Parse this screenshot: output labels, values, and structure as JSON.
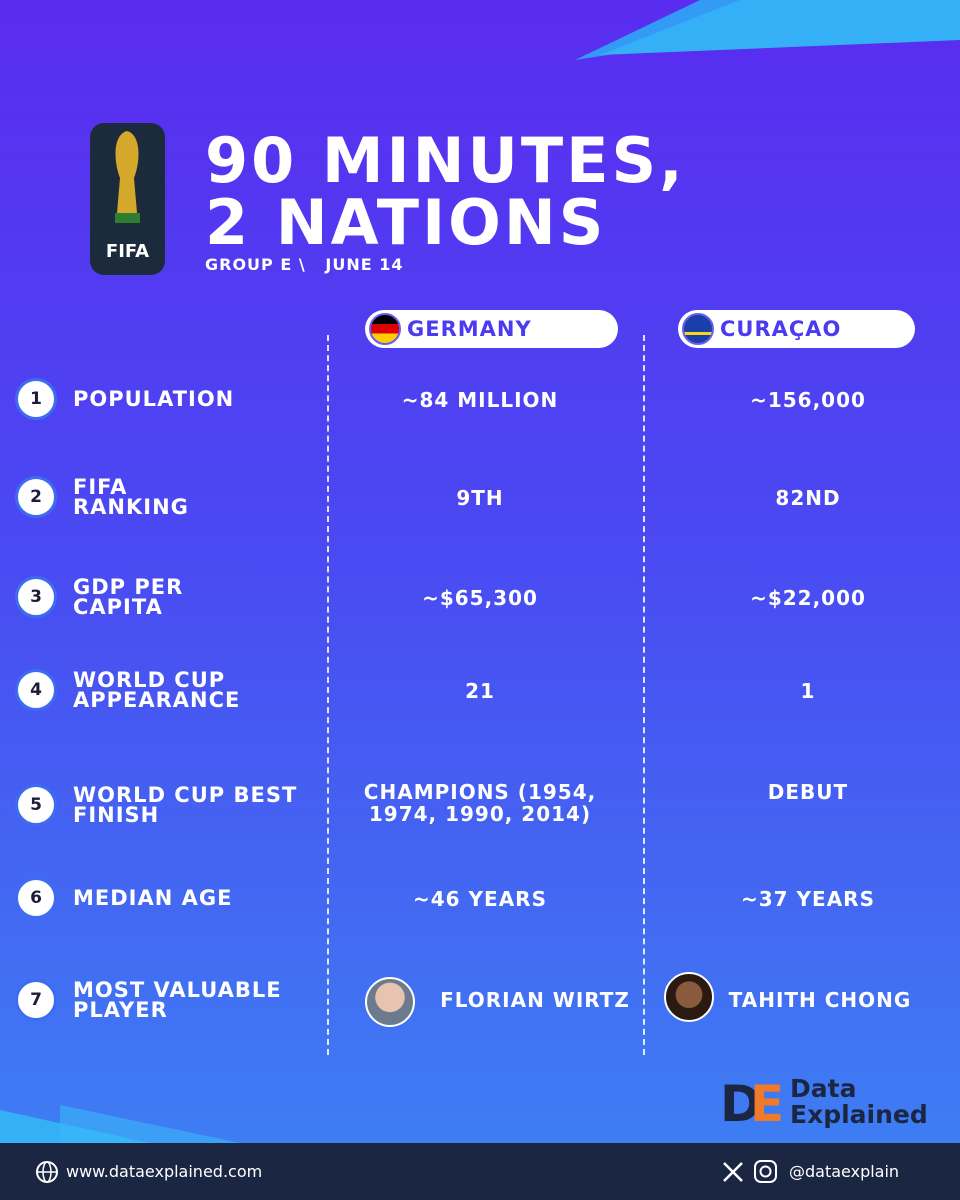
{
  "header": {
    "logo_text": "FIFA",
    "title_lines": [
      "90 MINUTES,",
      "2 NATIONS"
    ],
    "group": "GROUP E \\",
    "date": "JUNE 14"
  },
  "teams": [
    "GERMANY",
    "CURAÇAO"
  ],
  "rows": [
    {
      "number": 1,
      "label": "POPULATION",
      "values": [
        "~84 MILLION",
        "~156,000"
      ]
    },
    {
      "number": 2,
      "label": "FIFA RANKING",
      "values": [
        "9TH",
        "82ND"
      ]
    },
    {
      "number": 3,
      "label": "GDP PER CAPITA",
      "values": [
        "~$65,300",
        "~$22,000"
      ]
    },
    {
      "number": 4,
      "label": "WORLD CUP APPEARANCE",
      "values": [
        "21",
        "1"
      ]
    },
    {
      "number": 5,
      "label": "WORLD CUP BEST FINISH",
      "values": [
        "CHAMPIONS (1954, 1974, 1990, 2014)",
        "DEBUT"
      ]
    },
    {
      "number": 6,
      "label": "MEDIAN AGE",
      "values": [
        "~46 YEARS",
        "~37 YEARS"
      ]
    },
    {
      "number": 7,
      "label": "MOST VALUABLE PLAYER",
      "values": [
        "FLORIAN WIRTZ",
        "TAHITH CHONG"
      ]
    }
  ],
  "brand": "Data Explained",
  "footer": {
    "website": "www.dataexplained.com",
    "handle": "@dataexplain"
  }
}
